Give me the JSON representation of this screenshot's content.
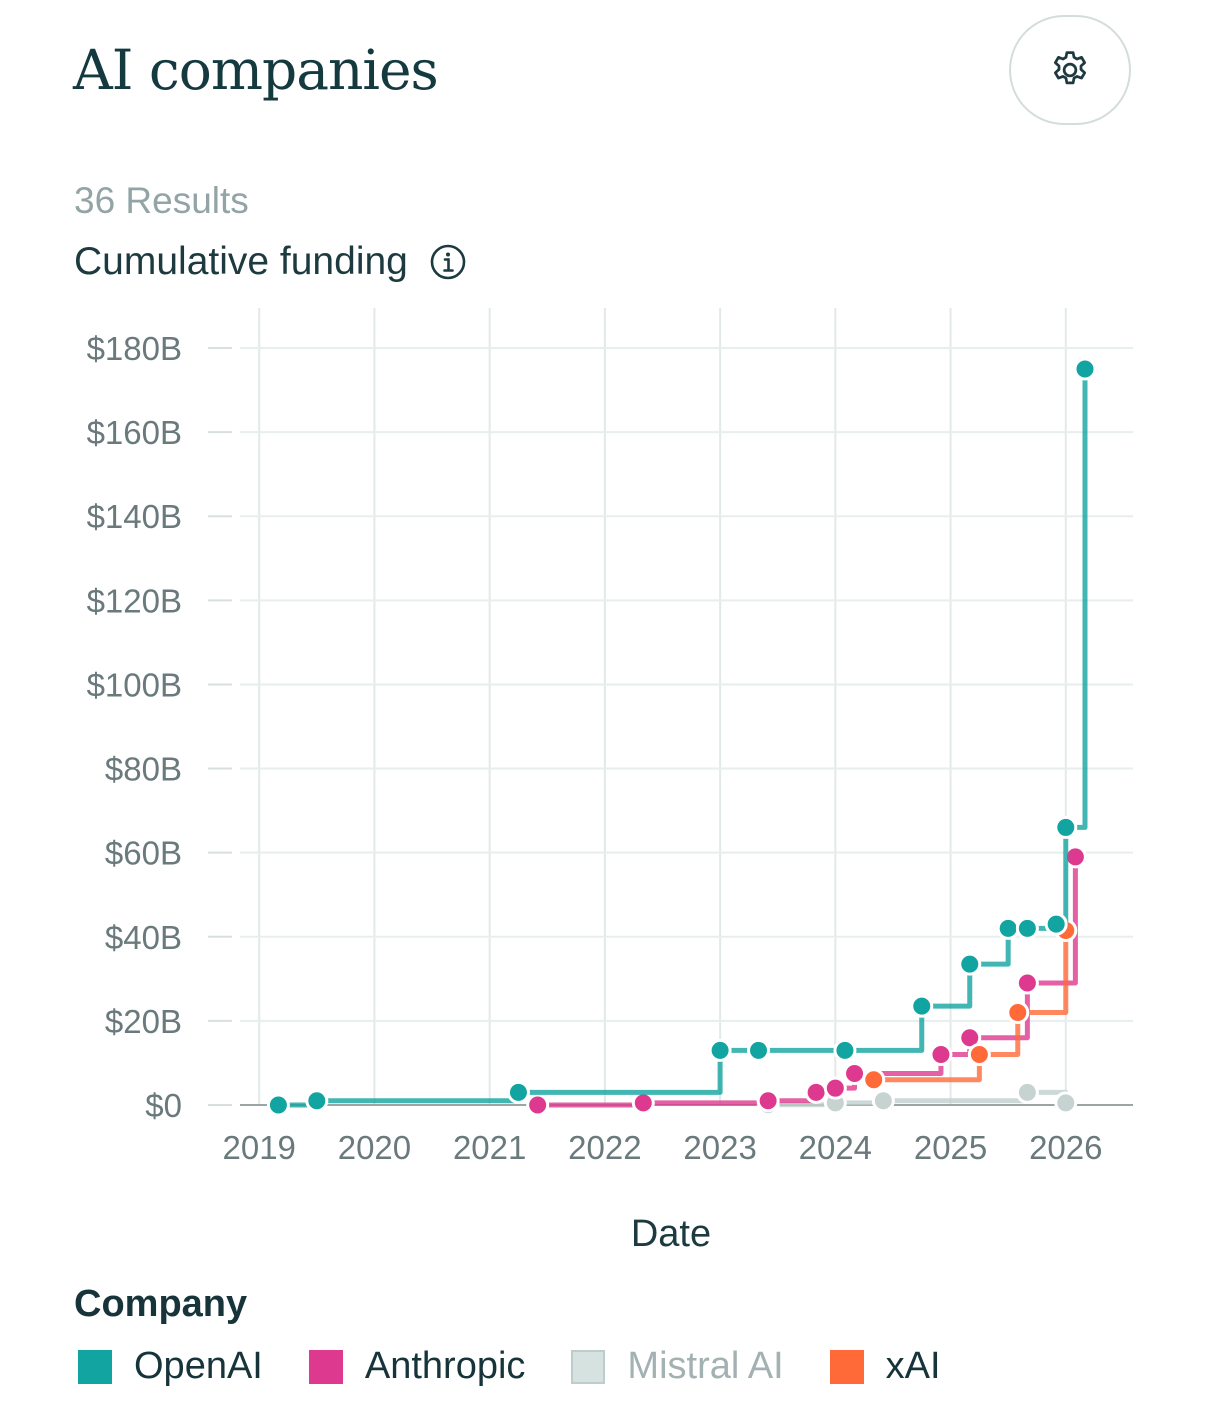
{
  "header": {
    "title": "AI companies",
    "settings_icon": "gear-icon"
  },
  "results": "36 Results",
  "chart_title": "Cumulative funding",
  "info_icon": "info-icon",
  "legend": {
    "title": "Company",
    "items": [
      {
        "label": "OpenAI",
        "color": "#12a4a0",
        "muted": false
      },
      {
        "label": "Anthropic",
        "color": "#dd3a8f",
        "muted": false
      },
      {
        "label": "Mistral AI",
        "color": "#d5e2e0",
        "muted": true
      },
      {
        "label": "xAI",
        "color": "#ff6a38",
        "muted": false
      }
    ]
  },
  "chart_data": {
    "type": "line",
    "step": true,
    "xlabel": "Date",
    "ylabel": "",
    "xticks": [
      "2019",
      "2020",
      "2021",
      "2022",
      "2023",
      "2024",
      "2025",
      "2026"
    ],
    "yticks": [
      "$0",
      "$20B",
      "$40B",
      "$60B",
      "$80B",
      "$100B",
      "$120B",
      "$140B",
      "$160B",
      "$180B"
    ],
    "ylim": [
      0,
      180
    ],
    "xlim": [
      "2018-11",
      "2026-08"
    ],
    "grid": true,
    "legend": "bottom",
    "series": [
      {
        "name": "OpenAI",
        "color": "#12a4a0",
        "points": [
          [
            "2019-03",
            0
          ],
          [
            "2019-07",
            1
          ],
          [
            "2021-04",
            3
          ],
          [
            "2023-01",
            13
          ],
          [
            "2023-05",
            13
          ],
          [
            "2024-02",
            13
          ],
          [
            "2024-10",
            23.5
          ],
          [
            "2025-03",
            33.5
          ],
          [
            "2025-07",
            42
          ],
          [
            "2025-09",
            42
          ],
          [
            "2025-12",
            43
          ],
          [
            "2026-01",
            66
          ],
          [
            "2026-03",
            175
          ]
        ]
      },
      {
        "name": "Anthropic",
        "color": "#dd3a8f",
        "points": [
          [
            "2021-06",
            0
          ],
          [
            "2022-05",
            0.5
          ],
          [
            "2023-06",
            1
          ],
          [
            "2023-11",
            3
          ],
          [
            "2024-01",
            4
          ],
          [
            "2024-03",
            7.5
          ],
          [
            "2024-12",
            12
          ],
          [
            "2025-03",
            16
          ],
          [
            "2025-09",
            29
          ],
          [
            "2026-02",
            59
          ]
        ]
      },
      {
        "name": "Mistral AI",
        "color": "#d5e2e0",
        "points": [
          [
            "2023-06",
            0.1
          ],
          [
            "2024-01",
            0.5
          ],
          [
            "2024-06",
            1
          ],
          [
            "2025-09",
            3
          ],
          [
            "2026-01",
            0.5
          ]
        ]
      },
      {
        "name": "xAI",
        "color": "#ff6a38",
        "points": [
          [
            "2024-05",
            6
          ],
          [
            "2025-04",
            12
          ],
          [
            "2025-08",
            22
          ],
          [
            "2026-01",
            41.5
          ]
        ]
      }
    ]
  }
}
